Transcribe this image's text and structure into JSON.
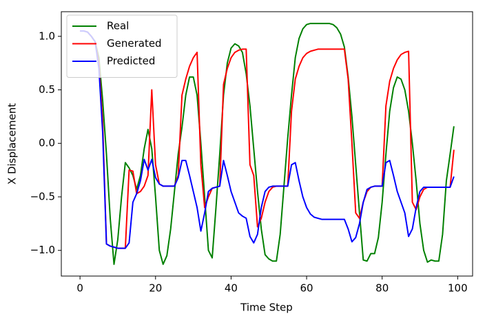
{
  "chart_data": {
    "type": "line",
    "xlabel": "Time Step",
    "ylabel": "X Displacement",
    "x": [
      0,
      1,
      2,
      3,
      4,
      5,
      6,
      7,
      8,
      9,
      10,
      11,
      12,
      13,
      14,
      15,
      16,
      17,
      18,
      19,
      20,
      21,
      22,
      23,
      24,
      25,
      26,
      27,
      28,
      29,
      30,
      31,
      32,
      33,
      34,
      35,
      36,
      37,
      38,
      39,
      40,
      41,
      42,
      43,
      44,
      45,
      46,
      47,
      48,
      49,
      50,
      51,
      52,
      53,
      54,
      55,
      56,
      57,
      58,
      59,
      60,
      61,
      62,
      63,
      64,
      65,
      66,
      67,
      68,
      69,
      70,
      71,
      72,
      73,
      74,
      75,
      76,
      77,
      78,
      79,
      80,
      81,
      82,
      83,
      84,
      85,
      86,
      87,
      88,
      89,
      90,
      91,
      92,
      93,
      94,
      95,
      96,
      97,
      98,
      99
    ],
    "series": [
      {
        "name": "Real",
        "color": "#008000",
        "values": [
          1.05,
          1.05,
          1.04,
          1.0,
          0.95,
          0.8,
          0.4,
          -0.1,
          -0.7,
          -1.13,
          -0.9,
          -0.5,
          -0.18,
          -0.23,
          -0.3,
          -0.43,
          -0.3,
          -0.05,
          0.13,
          -0.05,
          -0.5,
          -1.0,
          -1.13,
          -1.05,
          -0.8,
          -0.45,
          -0.1,
          0.15,
          0.45,
          0.62,
          0.62,
          0.45,
          0.0,
          -0.5,
          -1.0,
          -1.07,
          -0.6,
          -0.1,
          0.45,
          0.75,
          0.89,
          0.93,
          0.91,
          0.85,
          0.65,
          0.35,
          -0.05,
          -0.45,
          -0.8,
          -1.04,
          -1.08,
          -1.1,
          -1.1,
          -0.85,
          -0.4,
          0.05,
          0.45,
          0.8,
          0.98,
          1.07,
          1.11,
          1.12,
          1.12,
          1.12,
          1.12,
          1.12,
          1.12,
          1.11,
          1.08,
          1.02,
          0.9,
          0.62,
          0.25,
          -0.2,
          -0.65,
          -1.09,
          -1.1,
          -1.03,
          -1.03,
          -0.88,
          -0.55,
          -0.1,
          0.3,
          0.52,
          0.62,
          0.6,
          0.5,
          0.3,
          0.0,
          -0.35,
          -0.75,
          -1.0,
          -1.11,
          -1.09,
          -1.1,
          -1.1,
          -0.85,
          -0.35,
          -0.1,
          0.16
        ]
      },
      {
        "name": "Generated",
        "color": "#ff0000",
        "values": [
          1.05,
          1.05,
          1.04,
          1.0,
          0.95,
          0.75,
          0.2,
          -0.94,
          -0.96,
          -0.97,
          -0.98,
          -0.98,
          -0.98,
          -0.25,
          -0.26,
          -0.47,
          -0.45,
          -0.4,
          -0.3,
          0.5,
          -0.2,
          -0.38,
          -0.4,
          -0.4,
          -0.4,
          -0.4,
          -0.3,
          0.45,
          0.6,
          0.72,
          0.8,
          0.85,
          -0.2,
          -0.6,
          -0.5,
          -0.42,
          -0.41,
          -0.4,
          0.55,
          0.7,
          0.8,
          0.85,
          0.87,
          0.88,
          0.88,
          -0.2,
          -0.3,
          -0.78,
          -0.7,
          -0.55,
          -0.45,
          -0.41,
          -0.4,
          -0.4,
          -0.4,
          -0.4,
          0.3,
          0.6,
          0.72,
          0.8,
          0.84,
          0.86,
          0.87,
          0.88,
          0.88,
          0.88,
          0.88,
          0.88,
          0.88,
          0.88,
          0.88,
          0.6,
          0.0,
          -0.65,
          -0.7,
          -0.55,
          -0.45,
          -0.41,
          -0.4,
          -0.4,
          -0.4,
          0.35,
          0.58,
          0.7,
          0.78,
          0.83,
          0.85,
          0.86,
          -0.55,
          -0.62,
          -0.5,
          -0.43,
          -0.41,
          -0.41,
          -0.41,
          -0.41,
          -0.41,
          -0.41,
          -0.41,
          -0.06
        ]
      },
      {
        "name": "Predicted",
        "color": "#0000ff",
        "values": [
          1.05,
          1.05,
          1.04,
          1.0,
          0.95,
          0.7,
          0.1,
          -0.94,
          -0.96,
          -0.97,
          -0.98,
          -0.98,
          -0.98,
          -0.93,
          -0.55,
          -0.47,
          -0.35,
          -0.15,
          -0.25,
          -0.15,
          -0.32,
          -0.38,
          -0.4,
          -0.4,
          -0.4,
          -0.4,
          -0.32,
          -0.16,
          -0.16,
          -0.3,
          -0.45,
          -0.6,
          -0.82,
          -0.65,
          -0.45,
          -0.42,
          -0.41,
          -0.4,
          -0.16,
          -0.3,
          -0.45,
          -0.55,
          -0.65,
          -0.68,
          -0.7,
          -0.87,
          -0.93,
          -0.85,
          -0.6,
          -0.45,
          -0.41,
          -0.4,
          -0.4,
          -0.4,
          -0.4,
          -0.4,
          -0.2,
          -0.18,
          -0.35,
          -0.5,
          -0.6,
          -0.66,
          -0.69,
          -0.7,
          -0.71,
          -0.71,
          -0.71,
          -0.71,
          -0.71,
          -0.71,
          -0.71,
          -0.8,
          -0.92,
          -0.88,
          -0.75,
          -0.55,
          -0.43,
          -0.41,
          -0.4,
          -0.4,
          -0.4,
          -0.18,
          -0.16,
          -0.3,
          -0.45,
          -0.55,
          -0.65,
          -0.87,
          -0.8,
          -0.6,
          -0.45,
          -0.41,
          -0.41,
          -0.41,
          -0.41,
          -0.41,
          -0.41,
          -0.41,
          -0.41,
          -0.31
        ]
      }
    ],
    "xlim": [
      -4.95,
      103.95
    ],
    "ylim": [
      -1.24,
      1.23
    ],
    "xticks": [
      0,
      20,
      40,
      60,
      80,
      100
    ],
    "yticks": [
      {
        "value": -1.0,
        "label": "−1.0"
      },
      {
        "value": -0.5,
        "label": "−0.5"
      },
      {
        "value": 0.0,
        "label": "0.0"
      },
      0.5,
      {
        "value": 1.0,
        "label": "1.0"
      }
    ],
    "legend": "upper left",
    "grid": false
  }
}
